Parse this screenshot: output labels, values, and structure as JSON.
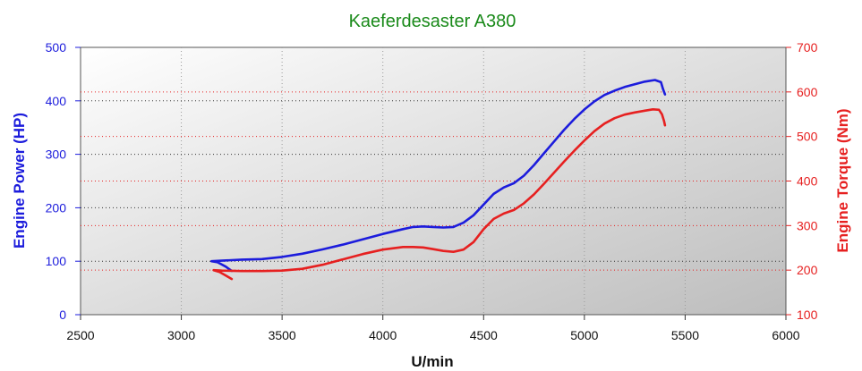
{
  "chart_data": {
    "type": "line",
    "title": "Kaeferdesaster A380",
    "xlabel": "U/min",
    "ylabel_left": "Engine Power (HP)",
    "ylabel_right": "Engine Torque (Nm)",
    "xlim": [
      2500,
      6000
    ],
    "ylim_left": [
      0,
      500
    ],
    "ylim_right": [
      100,
      700
    ],
    "x_ticks": [
      "2500",
      "3000",
      "3500",
      "4000",
      "4500",
      "5000",
      "5500",
      "6000"
    ],
    "y_left_ticks": [
      "0",
      "100",
      "200",
      "300",
      "400",
      "500"
    ],
    "y_right_ticks": [
      "100",
      "200",
      "300",
      "400",
      "500",
      "600",
      "700"
    ],
    "grid": true,
    "series": [
      {
        "name": "Engine Power",
        "axis": "left",
        "color": "#1c1cdc",
        "points": [
          [
            3250,
            82
          ],
          [
            3220,
            90
          ],
          [
            3180,
            98
          ],
          [
            3150,
            100
          ],
          [
            3200,
            101
          ],
          [
            3300,
            103
          ],
          [
            3400,
            104
          ],
          [
            3500,
            108
          ],
          [
            3600,
            114
          ],
          [
            3700,
            122
          ],
          [
            3800,
            131
          ],
          [
            3900,
            141
          ],
          [
            4000,
            151
          ],
          [
            4100,
            160
          ],
          [
            4150,
            164
          ],
          [
            4200,
            165
          ],
          [
            4250,
            164
          ],
          [
            4300,
            163
          ],
          [
            4350,
            164
          ],
          [
            4400,
            172
          ],
          [
            4450,
            186
          ],
          [
            4500,
            206
          ],
          [
            4550,
            226
          ],
          [
            4600,
            238
          ],
          [
            4650,
            246
          ],
          [
            4700,
            260
          ],
          [
            4750,
            280
          ],
          [
            4800,
            302
          ],
          [
            4850,
            324
          ],
          [
            4900,
            346
          ],
          [
            4950,
            366
          ],
          [
            5000,
            384
          ],
          [
            5050,
            399
          ],
          [
            5100,
            411
          ],
          [
            5150,
            419
          ],
          [
            5200,
            426
          ],
          [
            5250,
            431
          ],
          [
            5300,
            436
          ],
          [
            5350,
            439
          ],
          [
            5380,
            435
          ],
          [
            5390,
            422
          ],
          [
            5400,
            412
          ]
        ]
      },
      {
        "name": "Engine Torque",
        "axis": "right",
        "color": "#e62020",
        "points": [
          [
            3250,
            180
          ],
          [
            3220,
            188
          ],
          [
            3190,
            196
          ],
          [
            3160,
            200
          ],
          [
            3200,
            199
          ],
          [
            3300,
            198
          ],
          [
            3400,
            198
          ],
          [
            3500,
            199
          ],
          [
            3600,
            203
          ],
          [
            3700,
            212
          ],
          [
            3800,
            224
          ],
          [
            3900,
            236
          ],
          [
            4000,
            246
          ],
          [
            4100,
            252
          ],
          [
            4150,
            252
          ],
          [
            4200,
            251
          ],
          [
            4250,
            247
          ],
          [
            4300,
            243
          ],
          [
            4350,
            241
          ],
          [
            4400,
            246
          ],
          [
            4450,
            263
          ],
          [
            4500,
            292
          ],
          [
            4550,
            315
          ],
          [
            4600,
            327
          ],
          [
            4650,
            335
          ],
          [
            4700,
            350
          ],
          [
            4750,
            370
          ],
          [
            4800,
            394
          ],
          [
            4850,
            419
          ],
          [
            4900,
            444
          ],
          [
            4950,
            468
          ],
          [
            5000,
            491
          ],
          [
            5050,
            512
          ],
          [
            5100,
            529
          ],
          [
            5150,
            541
          ],
          [
            5200,
            549
          ],
          [
            5250,
            554
          ],
          [
            5300,
            558
          ],
          [
            5340,
            561
          ],
          [
            5370,
            560
          ],
          [
            5385,
            550
          ],
          [
            5395,
            535
          ],
          [
            5400,
            525
          ]
        ]
      }
    ]
  }
}
